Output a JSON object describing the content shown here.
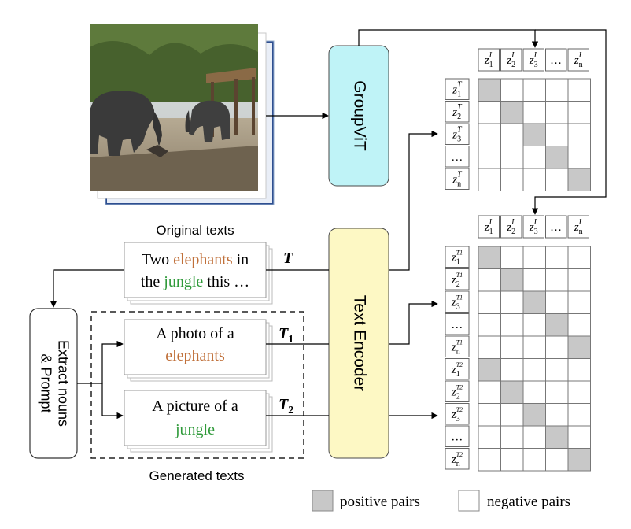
{
  "labels": {
    "original_texts": "Original texts",
    "generated_texts": "Generated texts",
    "groupvit": "GroupViT",
    "text_encoder": "Text Encoder",
    "extract_line1": "Extract nouns",
    "extract_line2": "& Prompt",
    "T": "T",
    "T1_main": "T",
    "T1_sub": "1",
    "T2_main": "T",
    "T2_sub": "2"
  },
  "original_text": {
    "line1_prefix": "Two ",
    "line1_noun": "elephants",
    "line1_suffix": " in",
    "line2_prefix": "the ",
    "line2_noun": "jungle",
    "line2_suffix": " this …"
  },
  "generated_text_1": {
    "line1": "A photo of a",
    "line2": "elephants"
  },
  "generated_text_2": {
    "line1": "A picture of a",
    "line2": "jungle"
  },
  "matrix_top": {
    "col_headers": [
      {
        "base": "z",
        "sub": "1",
        "sup": "I"
      },
      {
        "base": "z",
        "sub": "2",
        "sup": "I"
      },
      {
        "base": "z",
        "sub": "3",
        "sup": "I"
      },
      {
        "base": "…",
        "sub": "",
        "sup": ""
      },
      {
        "base": "z",
        "sub": "n",
        "sup": "I"
      }
    ],
    "row_headers": [
      {
        "base": "z",
        "sub": "1",
        "sup": "T"
      },
      {
        "base": "z",
        "sub": "2",
        "sup": "T"
      },
      {
        "base": "z",
        "sub": "3",
        "sup": "T"
      },
      {
        "base": "…",
        "sub": "",
        "sup": ""
      },
      {
        "base": "z",
        "sub": "n",
        "sup": "T"
      }
    ],
    "positive_cells": [
      [
        0,
        0
      ],
      [
        1,
        1
      ],
      [
        2,
        2
      ],
      [
        3,
        3
      ],
      [
        4,
        4
      ]
    ]
  },
  "matrix_bottom": {
    "col_headers": [
      {
        "base": "z",
        "sub": "1",
        "sup": "I"
      },
      {
        "base": "z",
        "sub": "2",
        "sup": "I"
      },
      {
        "base": "z",
        "sub": "3",
        "sup": "I"
      },
      {
        "base": "…",
        "sub": "",
        "sup": ""
      },
      {
        "base": "z",
        "sub": "n",
        "sup": "I"
      }
    ],
    "row_headers": [
      {
        "base": "z",
        "sub": "1",
        "sup": "T1"
      },
      {
        "base": "z",
        "sub": "2",
        "sup": "T1"
      },
      {
        "base": "z",
        "sub": "3",
        "sup": "T1"
      },
      {
        "base": "…",
        "sub": "",
        "sup": ""
      },
      {
        "base": "z",
        "sub": "n",
        "sup": "T1"
      },
      {
        "base": "z",
        "sub": "1",
        "sup": "T2"
      },
      {
        "base": "z",
        "sub": "2",
        "sup": "T2"
      },
      {
        "base": "z",
        "sub": "3",
        "sup": "T2"
      },
      {
        "base": "…",
        "sub": "",
        "sup": ""
      },
      {
        "base": "z",
        "sub": "n",
        "sup": "T2"
      }
    ],
    "positive_cells": [
      [
        0,
        0
      ],
      [
        1,
        1
      ],
      [
        2,
        2
      ],
      [
        3,
        3
      ],
      [
        4,
        4
      ],
      [
        5,
        0
      ],
      [
        6,
        1
      ],
      [
        7,
        2
      ],
      [
        8,
        3
      ],
      [
        9,
        4
      ]
    ]
  },
  "legend": {
    "positive": "positive pairs",
    "negative": "negative pairs"
  },
  "colors": {
    "noun_elephant": "#c0703a",
    "noun_jungle": "#2f9a3a",
    "groupvit_fill": "#bff3f7",
    "text_encoder_fill": "#fdf8c4",
    "positive_cell": "#c8c8c8",
    "negative_cell": "#ffffff"
  }
}
